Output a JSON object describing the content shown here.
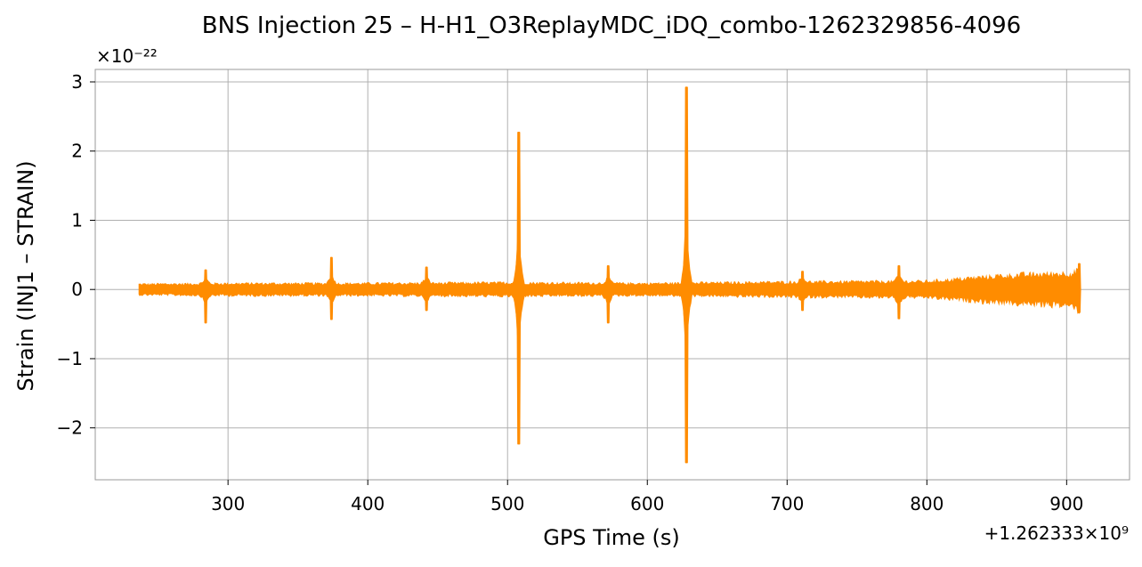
{
  "chart_data": {
    "type": "line",
    "title": "BNS Injection 25 – H-H1_O3ReplayMDC_iDQ_combo-1262329856-4096",
    "xlabel": "GPS Time (s)",
    "ylabel": "Strain (INJ1 – STRAIN)",
    "y_scale_label": "×10⁻²²",
    "x_offset_label": "+1.262333×10⁹",
    "x_ticks": [
      300,
      400,
      500,
      600,
      700,
      800,
      900
    ],
    "y_ticks": [
      -2,
      -1,
      0,
      1,
      2,
      3
    ],
    "y_tick_labels": [
      "−2",
      "−1",
      "0",
      "1",
      "2",
      "3"
    ],
    "xlim": [
      205,
      945
    ],
    "ylim": [
      -2.75,
      3.18
    ],
    "x_range_data": [
      236,
      910
    ],
    "grid": true,
    "legend": "none",
    "series": [
      {
        "color": "#ff8c00",
        "noise_band": {
          "x": [
            236,
            300,
            400,
            500,
            600,
            700,
            800,
            850,
            910
          ],
          "amplitude": [
            0.08,
            0.09,
            0.09,
            0.1,
            0.09,
            0.11,
            0.12,
            0.2,
            0.25
          ]
        },
        "spikes": [
          {
            "x": 284,
            "max": 0.28,
            "min": -0.48
          },
          {
            "x": 374,
            "max": 0.46,
            "min": -0.43
          },
          {
            "x": 442,
            "max": 0.32,
            "min": -0.3
          },
          {
            "x": 508,
            "max": 2.27,
            "min": -2.23
          },
          {
            "x": 572,
            "max": 0.34,
            "min": -0.48
          },
          {
            "x": 628,
            "max": 2.92,
            "min": -2.5
          },
          {
            "x": 711,
            "max": 0.26,
            "min": -0.3
          },
          {
            "x": 780,
            "max": 0.34,
            "min": -0.42
          },
          {
            "x": 909,
            "max": 0.37,
            "min": -0.33
          }
        ]
      }
    ]
  }
}
